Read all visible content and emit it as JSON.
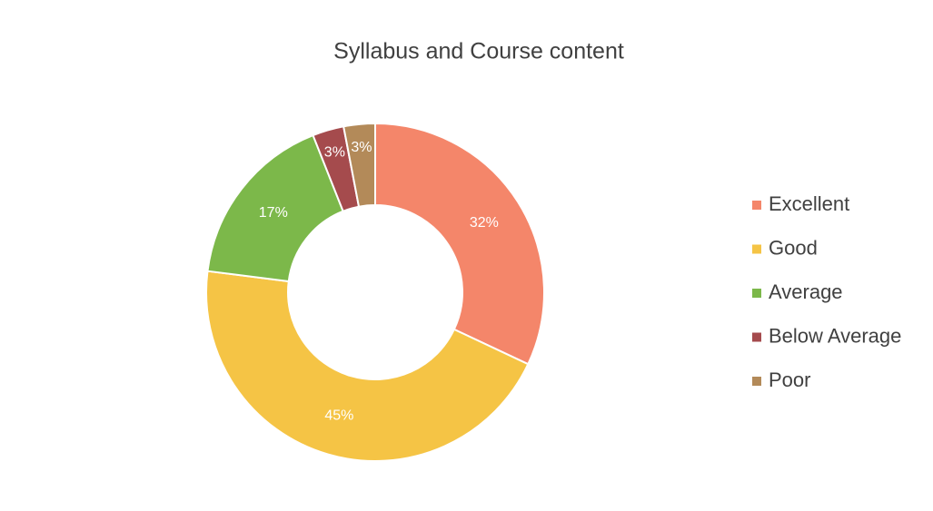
{
  "chart_data": {
    "type": "donut",
    "title": "Syllabus and Course content",
    "categories": [
      "Excellent",
      "Good",
      "Average",
      "Below Average",
      "Poor"
    ],
    "values": [
      32,
      45,
      17,
      3,
      3
    ],
    "value_labels": [
      "32%",
      "45%",
      "17%",
      "3%",
      "3%"
    ],
    "colors": [
      "#f4866a",
      "#f5c445",
      "#7cb84a",
      "#a54b4d",
      "#b38a59"
    ],
    "legend": "right"
  }
}
